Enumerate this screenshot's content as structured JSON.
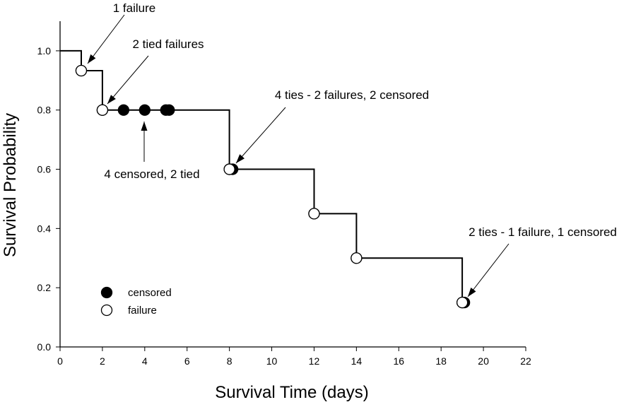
{
  "chart_data": {
    "type": "line",
    "title": "",
    "xlabel": "Survival Time (days)",
    "ylabel": "Survival Probability",
    "xlim": [
      0,
      22
    ],
    "ylim": [
      0,
      1.1
    ],
    "xticks": [
      0,
      2,
      4,
      6,
      8,
      10,
      12,
      14,
      16,
      18,
      20,
      22
    ],
    "yticks": [
      0.0,
      0.2,
      0.4,
      0.6,
      0.8,
      1.0
    ],
    "xtick_labels": [
      "0",
      "2",
      "4",
      "6",
      "8",
      "10",
      "12",
      "14",
      "16",
      "18",
      "20",
      "22"
    ],
    "ytick_labels": [
      "0.0",
      "0.2",
      "0.4",
      "0.6",
      "0.8",
      "1.0"
    ],
    "grid": false,
    "step_curve": [
      [
        0,
        1.0
      ],
      [
        1,
        1.0
      ],
      [
        1,
        0.933
      ],
      [
        2,
        0.933
      ],
      [
        2,
        0.8
      ],
      [
        8,
        0.8
      ],
      [
        8,
        0.6
      ],
      [
        12,
        0.6
      ],
      [
        12,
        0.45
      ],
      [
        14,
        0.45
      ],
      [
        14,
        0.3
      ],
      [
        19,
        0.3
      ],
      [
        19,
        0.15
      ]
    ],
    "series": [
      {
        "name": "censored",
        "marker": "filled-circle",
        "color": "#000000",
        "points": [
          [
            3,
            0.8
          ],
          [
            4,
            0.8
          ],
          [
            5,
            0.8
          ],
          [
            5.15,
            0.8
          ],
          [
            8.15,
            0.6
          ],
          [
            19.1,
            0.15
          ]
        ]
      },
      {
        "name": "failure",
        "marker": "open-circle",
        "color": "#000000",
        "points": [
          [
            1,
            0.933
          ],
          [
            2,
            0.8
          ],
          [
            8,
            0.6
          ],
          [
            12,
            0.45
          ],
          [
            14,
            0.3
          ],
          [
            19,
            0.15
          ]
        ]
      }
    ],
    "legend": {
      "placement": "bottom-left",
      "entries": [
        {
          "label": "censored",
          "marker": "filled-circle"
        },
        {
          "label": "failure",
          "marker": "open-circle"
        }
      ]
    },
    "annotations": [
      {
        "text": "1 failure",
        "point": [
          1,
          0.933
        ]
      },
      {
        "text": "2 tied failures",
        "point": [
          2,
          0.8
        ]
      },
      {
        "text": "4 censored, 2 tied",
        "point": [
          4,
          0.8
        ]
      },
      {
        "text": "4 ties - 2 failures, 2 censored",
        "point": [
          8,
          0.6
        ]
      },
      {
        "text": "2 ties - 1 failure, 1 censored",
        "point": [
          19,
          0.15
        ]
      }
    ]
  }
}
